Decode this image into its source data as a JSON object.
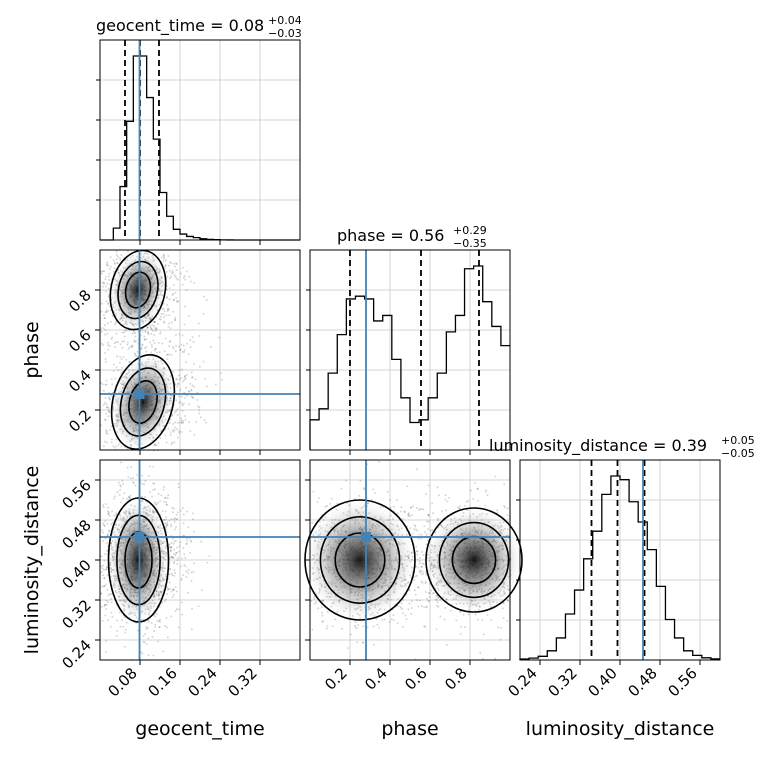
{
  "chart_data": {
    "type": "corner",
    "truth_color": "#4682b4",
    "params": [
      {
        "name": "geocent_time",
        "xlabel": "geocent_time",
        "title": {
          "main": "geocent_time = 0.08",
          "plus": "+0.04",
          "minus": "−0.03"
        },
        "range": [
          0.0,
          0.4
        ],
        "ticks": [
          0.08,
          0.16,
          0.24,
          0.32
        ],
        "tick_labels": [
          "0.08",
          "0.16",
          "0.24",
          "0.32"
        ],
        "truth": 0.079,
        "quantiles": [
          0.05,
          0.08,
          0.118
        ],
        "hist_bins": [
          0.0,
          0.4
        ],
        "hist": [
          0,
          0,
          2,
          9,
          20,
          31,
          31,
          24,
          17,
          8,
          4,
          1.8,
          1.0,
          0.6,
          0.4,
          0.2,
          0.1,
          0.05,
          0.02,
          0.01,
          0,
          0,
          0,
          0,
          0,
          0,
          0,
          0,
          0,
          0
        ]
      },
      {
        "name": "phase",
        "xlabel": "phase",
        "ylabel": "phase",
        "title": {
          "main": "phase = 0.56",
          "plus": "+0.29",
          "minus": "−0.35"
        },
        "range": [
          0.0,
          1.0
        ],
        "ticks": [
          0.2,
          0.4,
          0.6,
          0.8
        ],
        "tick_labels": [
          "0.2",
          "0.4",
          "0.6",
          "0.8"
        ],
        "truth": 0.28,
        "quantiles": [
          0.2,
          0.555,
          0.845
        ],
        "hist": [
          11,
          15,
          28,
          42,
          55,
          56,
          55,
          47,
          49,
          33,
          19,
          10,
          11,
          19,
          28,
          43,
          49,
          66,
          67,
          54,
          45,
          38
        ]
      },
      {
        "name": "luminosity_distance",
        "xlabel": "luminosity_distance",
        "ylabel": "luminosity_distance",
        "title": {
          "main": "luminosity_distance = 0.39",
          "plus": "+0.05",
          "minus": "−0.05"
        },
        "range": [
          0.2,
          0.6
        ],
        "ticks": [
          0.24,
          0.32,
          0.4,
          0.48,
          0.56
        ],
        "tick_labels": [
          "0.24",
          "0.32",
          "0.40",
          "0.48",
          "0.56"
        ],
        "truth": 0.446,
        "quantiles": [
          0.343,
          0.395,
          0.449
        ],
        "hist": [
          0.5,
          1,
          2,
          5,
          12,
          25,
          38,
          55,
          70,
          90,
          100,
          98,
          86,
          75,
          60,
          40,
          22,
          12,
          5,
          2.5,
          1.2,
          0.6
        ]
      }
    ],
    "truth_point": {
      "geocent_time": 0.079,
      "phase": 0.28,
      "luminosity_distance": 0.446
    },
    "contour_levels": 3,
    "grid": true
  }
}
